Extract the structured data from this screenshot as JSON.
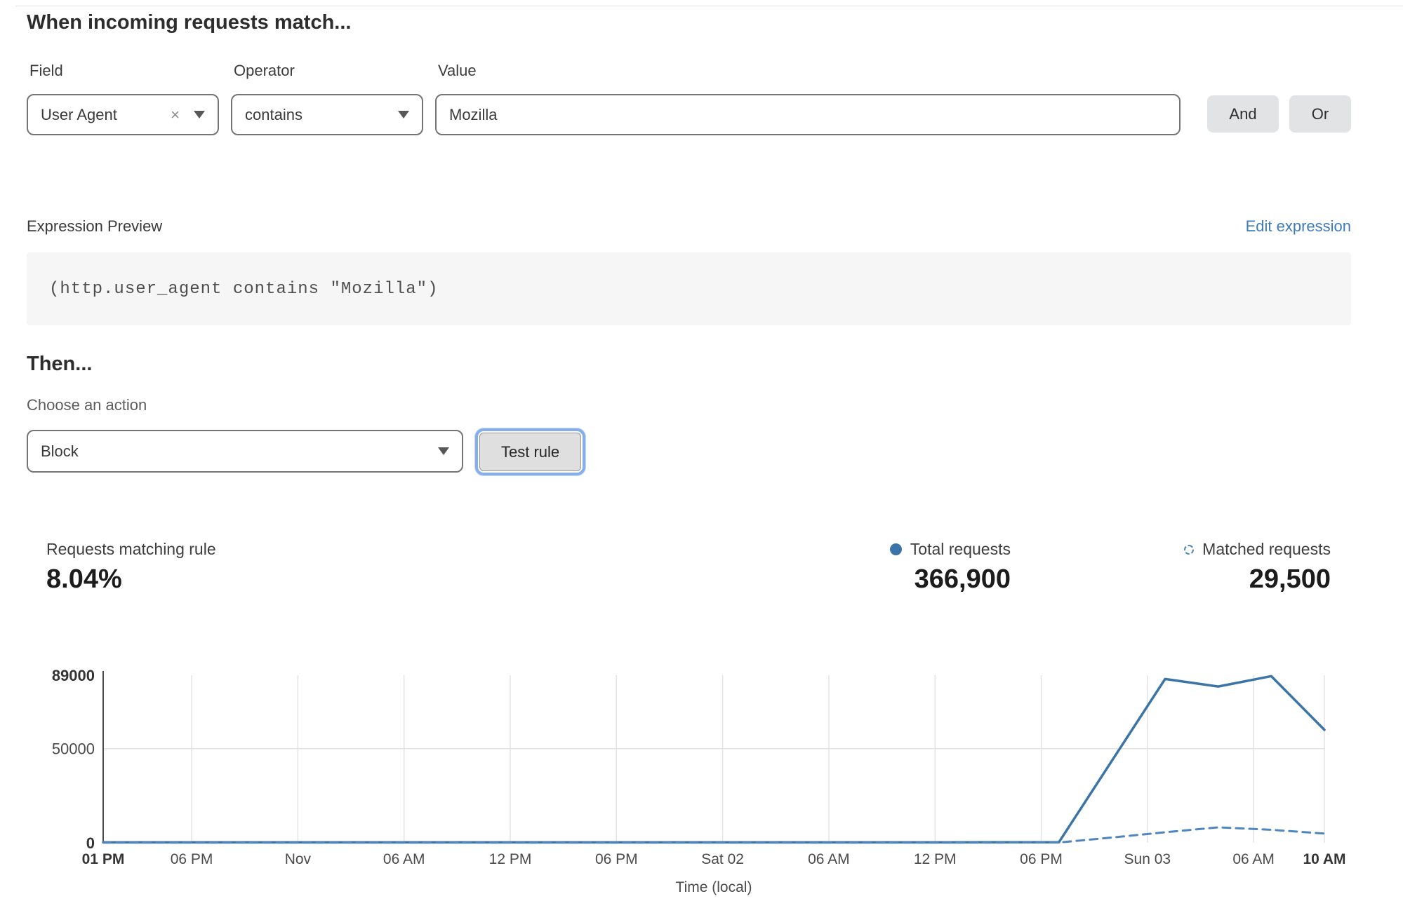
{
  "match_section": {
    "heading": "When incoming requests match...",
    "field": {
      "label": "Field",
      "value": "User Agent"
    },
    "operator": {
      "label": "Operator",
      "value": "contains"
    },
    "value": {
      "label": "Value",
      "value": "Mozilla"
    },
    "and_label": "And",
    "or_label": "Or"
  },
  "expression": {
    "label": "Expression Preview",
    "edit_link": "Edit expression",
    "code": "(http.user_agent contains \"Mozilla\")"
  },
  "action_section": {
    "heading": "Then...",
    "choose_label": "Choose an action",
    "action_value": "Block",
    "test_button_label": "Test rule"
  },
  "stats": {
    "matching_label": "Requests matching rule",
    "matching_value": "8.04%",
    "total_label": "Total requests",
    "total_value": "366,900",
    "matched_label": "Matched requests",
    "matched_value": "29,500"
  },
  "colors": {
    "total_line": "#3b74a7",
    "matched_line": "#4f86c0",
    "link_blue": "#3f7cb7",
    "legend_dot": "#3a74a8",
    "focus_ring": "#86afe9",
    "grid": "#e3e3e3",
    "axis": "#4a4a4a",
    "tick_text": "#4b4b4b",
    "tick_text_bold": "#343434"
  },
  "chart_data": {
    "type": "line",
    "title": "",
    "xlabel": "Time (local)",
    "ylabel": "",
    "grid": true,
    "legend_position": "top-right",
    "xlim": [
      0,
      69
    ],
    "ylim": [
      0,
      89000
    ],
    "x_unit": "hours from first tick",
    "x_ticks": [
      {
        "x": 0,
        "label": "01 PM",
        "bold": true
      },
      {
        "x": 5,
        "label": "06 PM"
      },
      {
        "x": 11,
        "label": "Nov"
      },
      {
        "x": 17,
        "label": "06 AM"
      },
      {
        "x": 23,
        "label": "12 PM"
      },
      {
        "x": 29,
        "label": "06 PM"
      },
      {
        "x": 35,
        "label": "Sat 02"
      },
      {
        "x": 41,
        "label": "06 AM"
      },
      {
        "x": 47,
        "label": "12 PM"
      },
      {
        "x": 53,
        "label": "06 PM"
      },
      {
        "x": 59,
        "label": "Sun 03"
      },
      {
        "x": 65,
        "label": "06 AM"
      },
      {
        "x": 69,
        "label": "10 AM",
        "bold": true
      }
    ],
    "y_ticks": [
      {
        "v": 0,
        "label": "0",
        "bold": true
      },
      {
        "v": 50000,
        "label": "50000"
      },
      {
        "v": 89000,
        "label": "89000",
        "bold": true
      }
    ],
    "series": [
      {
        "name": "Total requests",
        "style": "solid",
        "x": [
          0,
          6,
          12,
          18,
          24,
          30,
          36,
          42,
          48,
          54,
          60,
          63,
          66,
          69
        ],
        "values": [
          250,
          250,
          250,
          250,
          250,
          250,
          250,
          250,
          250,
          300,
          87000,
          83000,
          88500,
          60000
        ]
      },
      {
        "name": "Matched requests",
        "style": "dashed",
        "x": [
          0,
          6,
          12,
          18,
          24,
          30,
          36,
          42,
          48,
          54,
          57,
          60,
          63,
          66,
          69
        ],
        "values": [
          80,
          80,
          80,
          80,
          80,
          80,
          80,
          80,
          80,
          150,
          2800,
          5600,
          8200,
          6900,
          4900
        ]
      }
    ]
  }
}
